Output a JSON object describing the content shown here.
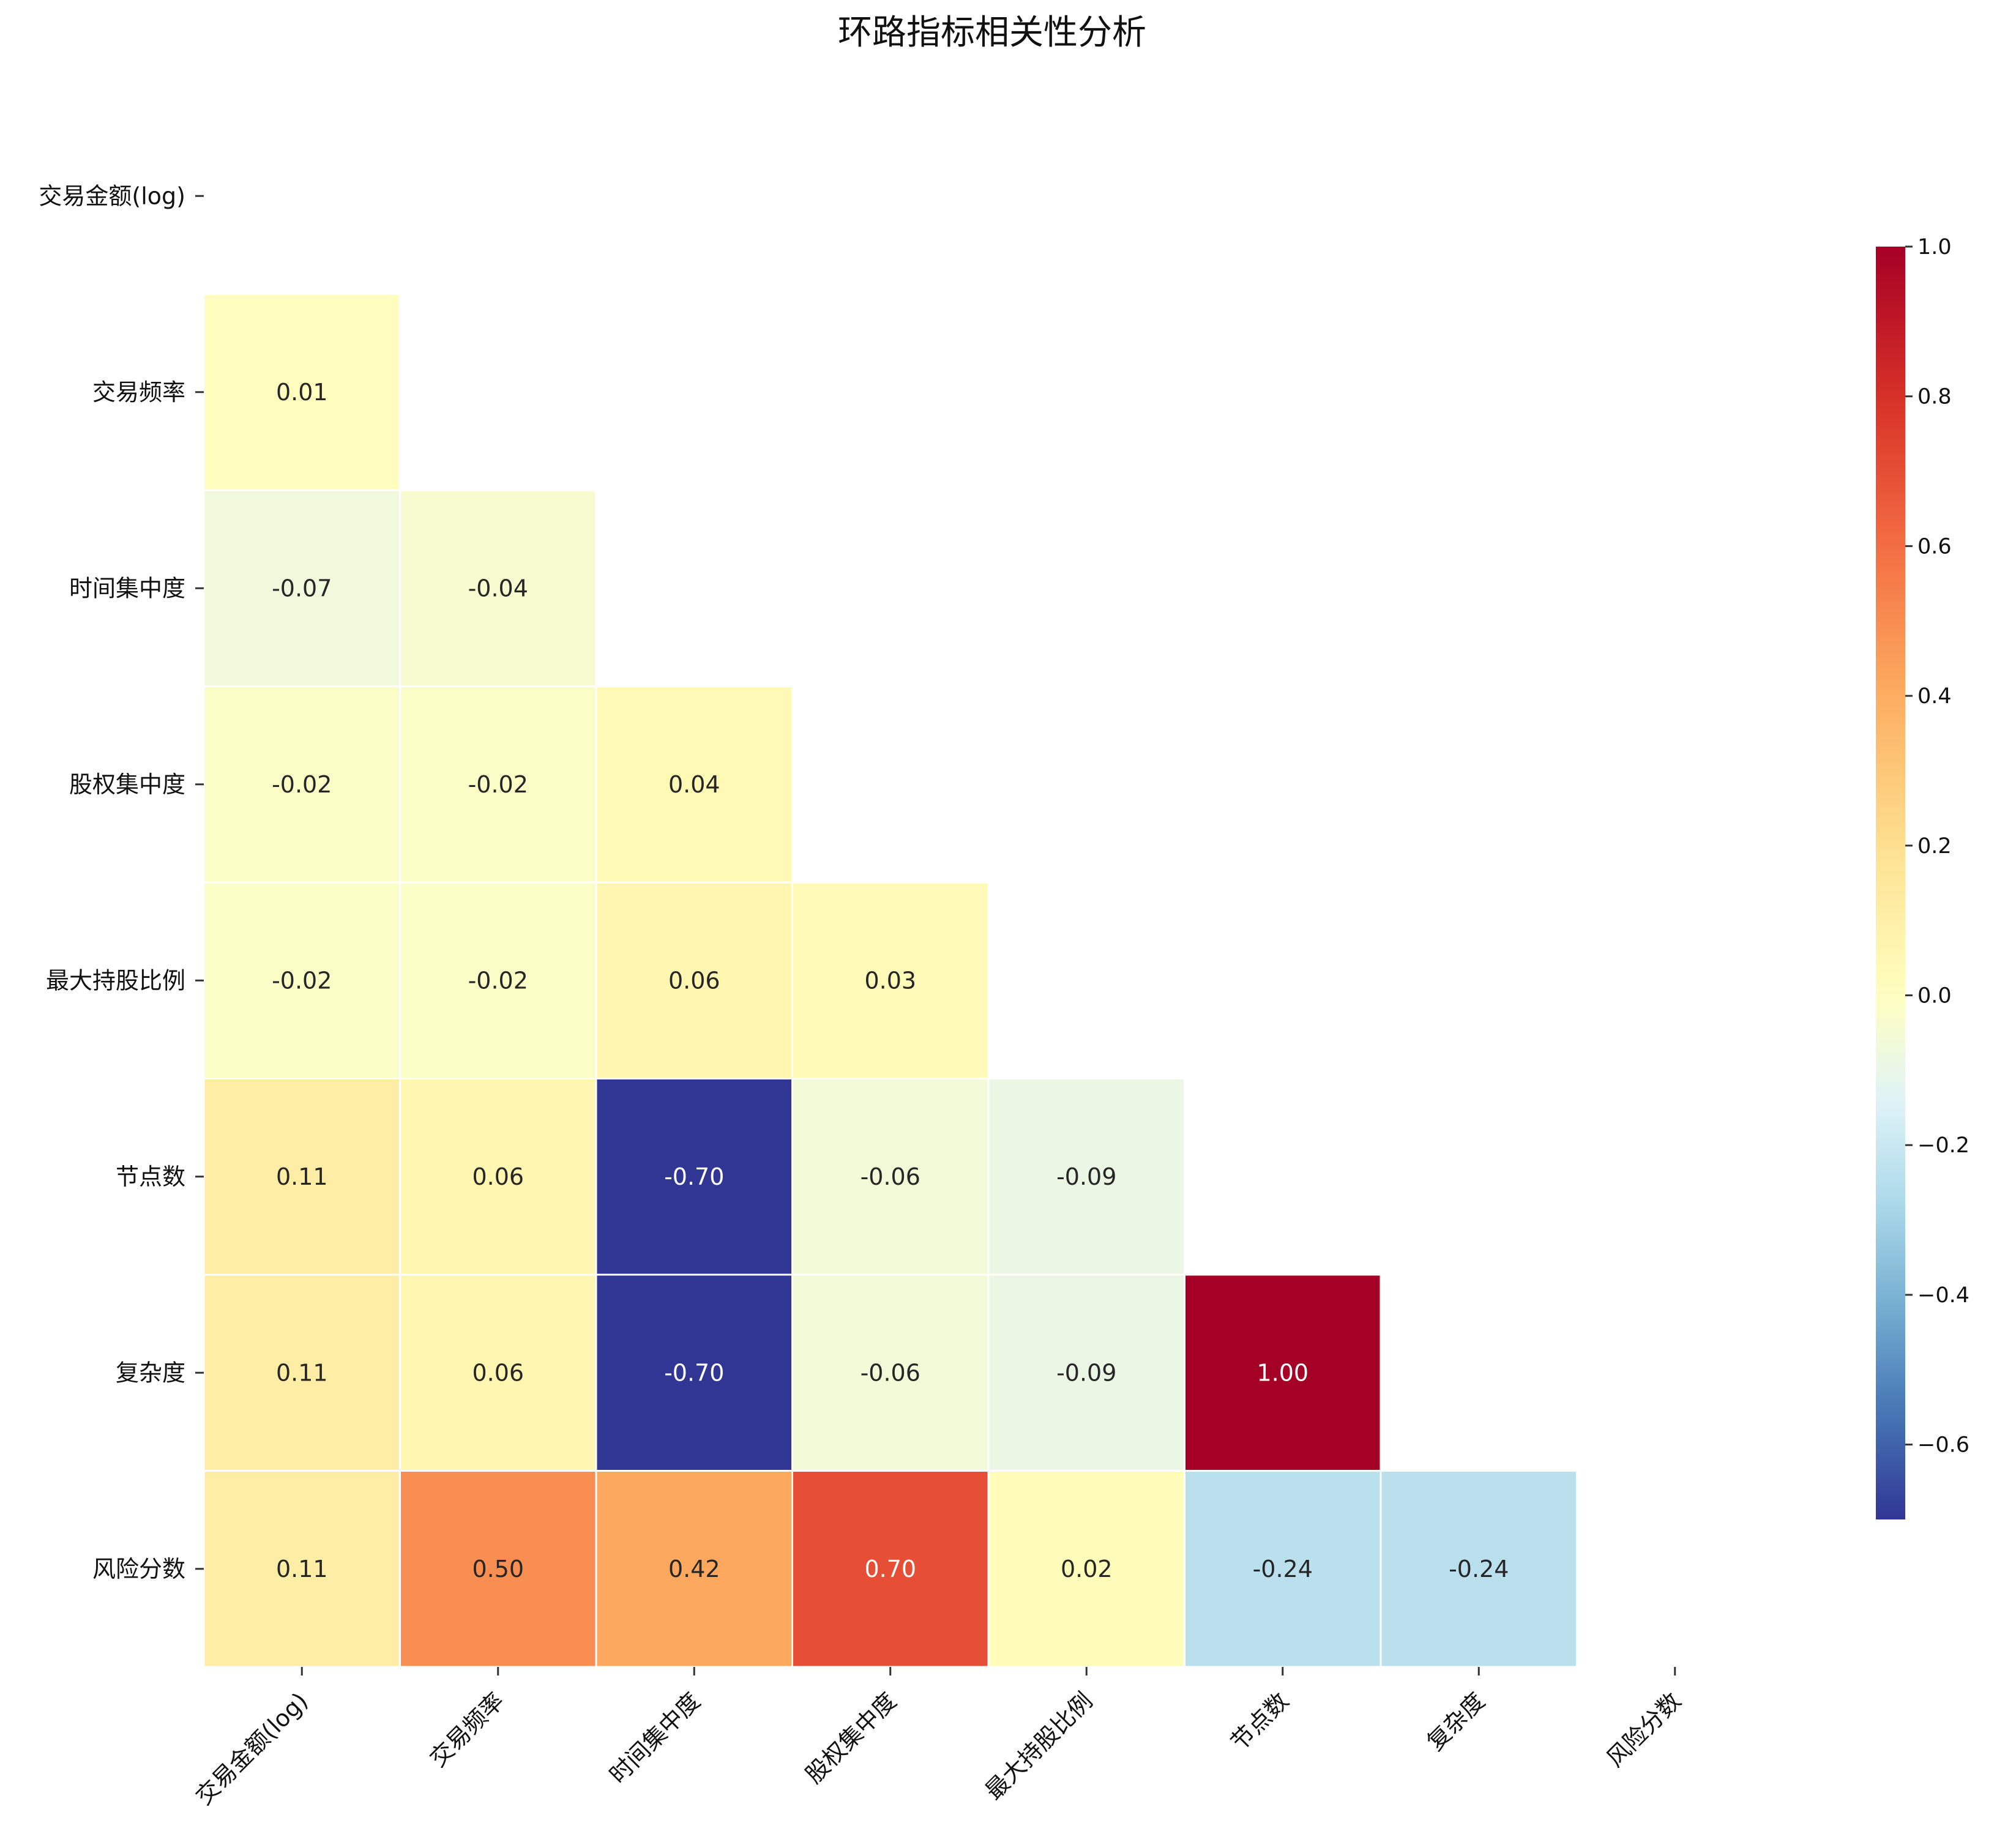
{
  "chart_data": {
    "type": "heatmap",
    "title": "环路指标相关性分析",
    "xlabel": "",
    "ylabel": "",
    "labels": [
      "交易金额(log)",
      "交易频率",
      "时间集中度",
      "股权集中度",
      "最大持股比例",
      "节点数",
      "复杂度",
      "风险分数"
    ],
    "mask": "upper-triangle-including-diagonal",
    "matrix": [
      [
        null,
        null,
        null,
        null,
        null,
        null,
        null,
        null
      ],
      [
        0.01,
        null,
        null,
        null,
        null,
        null,
        null,
        null
      ],
      [
        -0.07,
        -0.04,
        null,
        null,
        null,
        null,
        null,
        null
      ],
      [
        -0.02,
        -0.02,
        0.04,
        null,
        null,
        null,
        null,
        null
      ],
      [
        -0.02,
        -0.02,
        0.06,
        0.03,
        null,
        null,
        null,
        null
      ],
      [
        0.11,
        0.06,
        -0.7,
        -0.06,
        -0.09,
        null,
        null,
        null
      ],
      [
        0.11,
        0.06,
        -0.7,
        -0.06,
        -0.09,
        1.0,
        null,
        null
      ],
      [
        0.11,
        0.5,
        0.42,
        0.7,
        0.02,
        -0.24,
        -0.24,
        null
      ]
    ],
    "value_labels": [
      [
        null,
        null,
        null,
        null,
        null,
        null,
        null,
        null
      ],
      [
        "0.01",
        null,
        null,
        null,
        null,
        null,
        null,
        null
      ],
      [
        "-0.07",
        "-0.04",
        null,
        null,
        null,
        null,
        null,
        null
      ],
      [
        "-0.02",
        "-0.02",
        "0.04",
        null,
        null,
        null,
        null,
        null
      ],
      [
        "-0.02",
        "-0.02",
        "0.06",
        "0.03",
        null,
        null,
        null,
        null
      ],
      [
        "0.11",
        "0.06",
        "-0.70",
        "-0.06",
        "-0.09",
        null,
        null,
        null
      ],
      [
        "0.11",
        "0.06",
        "-0.70",
        "-0.06",
        "-0.09",
        "1.00",
        null,
        null
      ],
      [
        "0.11",
        "0.50",
        "0.42",
        "0.70",
        "0.02",
        "-0.24",
        "-0.24",
        null
      ]
    ],
    "colorbar": {
      "colormap": "RdYlBu_r",
      "range": [
        -0.7,
        1.0
      ],
      "ticks": [
        1.0,
        0.8,
        0.6,
        0.4,
        0.2,
        0.0,
        -0.2,
        -0.4,
        -0.6
      ],
      "tick_labels": [
        "1.0",
        "0.8",
        "0.6",
        "0.4",
        "0.2",
        "0.0",
        "−0.2",
        "−0.4",
        "−0.6"
      ]
    }
  }
}
